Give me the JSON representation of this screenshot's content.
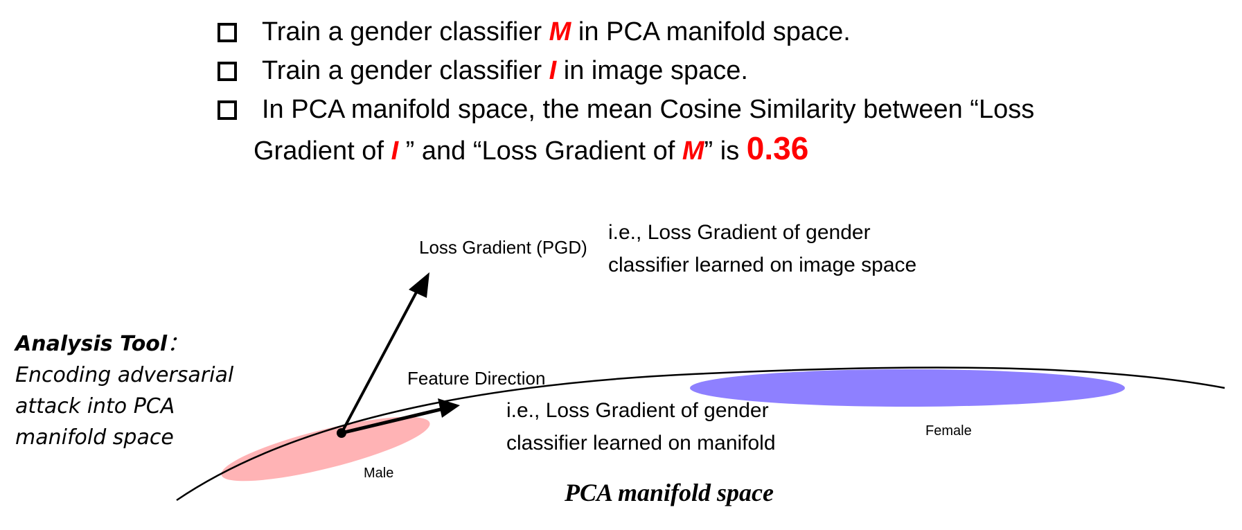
{
  "bullets": {
    "b1": {
      "pre": "Train a gender classifier ",
      "var": "M",
      "post": " in PCA manifold space."
    },
    "b2": {
      "pre": "Train a gender classifier ",
      "var": "I",
      "post": " in image space."
    },
    "b3": {
      "line1": "In PCA manifold space,  the mean Cosine Similarity between “Loss",
      "pre": "Gradient of ",
      "var1": "I",
      "mid": " ” and “Loss Gradient of ",
      "var2": "M",
      "post": "”  is ",
      "value": "0.36"
    }
  },
  "diagram": {
    "loss_gradient_label": "Loss Gradient (PGD)",
    "loss_gradient_note_1": "i.e., Loss Gradient of gender",
    "loss_gradient_note_2": "classifier learned on image space",
    "feature_direction_label": "Feature Direction",
    "feature_note_1": "i.e., Loss Gradient of gender",
    "feature_note_2": "classifier learned on manifold",
    "male_label": "Male",
    "female_label": "Female",
    "manifold_title": "PCA manifold space",
    "colors": {
      "male": "#ffb3b5",
      "female": "#8e80ff",
      "highlight": "#ff0000"
    }
  },
  "analysis_tool": {
    "title": "Analysis Tool",
    "colon": "：",
    "line1": "Encoding adversarial",
    "line2": "attack into PCA",
    "line3": "manifold space"
  }
}
